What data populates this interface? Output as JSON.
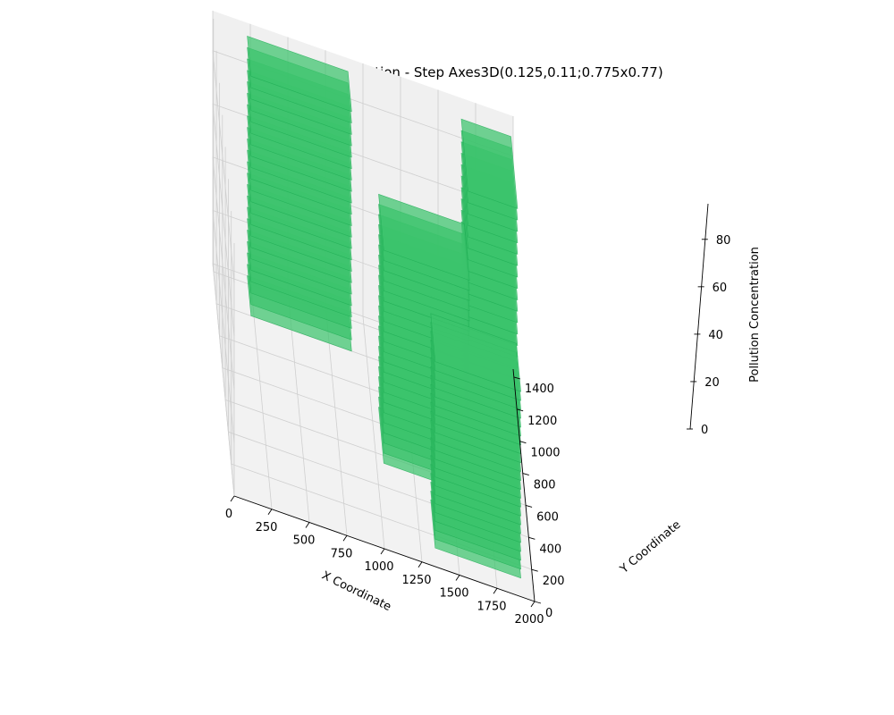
{
  "chart_data": {
    "type": "3d-stacked-planes",
    "title": "3D Pollution Visualization - Step Axes3D(0.125,0.11;0.775x0.77)",
    "xlabel": "X Coordinate",
    "ylabel": "Y Coordinate",
    "zlabel": "Pollution Concentration",
    "xlim": [
      0,
      2000
    ],
    "ylim": [
      0,
      1450
    ],
    "zlim": [
      0,
      95
    ],
    "x_ticks": [
      0,
      250,
      500,
      750,
      1000,
      1250,
      1500,
      1750,
      2000
    ],
    "y_ticks": [
      0,
      200,
      400,
      600,
      800,
      1000,
      1200,
      1400
    ],
    "z_ticks": [
      0,
      20,
      40,
      60,
      80
    ],
    "grid": true,
    "colors": {
      "plane_fill": "#3cc36c",
      "plane_edge": "#1fae55",
      "pane": "#f2f2f2",
      "grid": "#cfcfcf"
    },
    "columns": [
      {
        "x": [
          230,
          900
        ],
        "y": [
          1200,
          1450
        ],
        "z": [
          0,
          90
        ]
      },
      {
        "x": [
          1050,
          1620
        ],
        "y": [
          550,
          900
        ],
        "z": [
          0,
          80
        ]
      },
      {
        "x": [
          1350,
          1920
        ],
        "y": [
          120,
          420
        ],
        "z": [
          0,
          70
        ]
      },
      {
        "x": [
          1650,
          1980
        ],
        "y": [
          950,
          1400
        ],
        "z": [
          0,
          90
        ]
      }
    ],
    "layers": 22
  }
}
